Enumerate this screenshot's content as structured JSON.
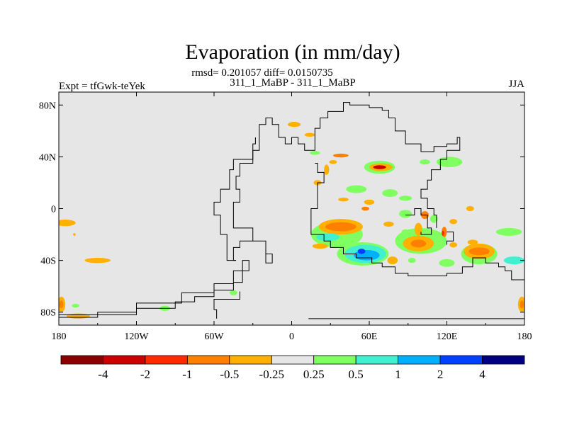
{
  "chart_data": {
    "type": "heatmap",
    "title": "Evaporation (in mm/day)",
    "stats_line": "rmsd= 0.201057 diff= 0.0150735",
    "comparison": "311_1_MaBP - 311_1_MaBP",
    "experiment": "Expt = tfGwk-teYek",
    "season": "JJA",
    "x_range": [
      -180,
      180
    ],
    "y_range": [
      -90,
      90
    ],
    "x_ticks": [
      {
        "value": -180,
        "label": "180"
      },
      {
        "value": -120,
        "label": "120W"
      },
      {
        "value": -60,
        "label": "60W"
      },
      {
        "value": 0,
        "label": "0"
      },
      {
        "value": 60,
        "label": "60E"
      },
      {
        "value": 120,
        "label": "120E"
      },
      {
        "value": 180,
        "label": "180"
      }
    ],
    "y_ticks": [
      {
        "value": 80,
        "label": "80N"
      },
      {
        "value": 40,
        "label": "40N"
      },
      {
        "value": 0,
        "label": "0"
      },
      {
        "value": -40,
        "label": "40S"
      },
      {
        "value": -80,
        "label": "80S"
      }
    ],
    "colorbar": {
      "colors": [
        "#8b0000",
        "#cc0000",
        "#ff2a00",
        "#ff7f00",
        "#ffb000",
        "#e6e6e6",
        "#80ff60",
        "#40f0d0",
        "#00b0ff",
        "#0040ff",
        "#000080"
      ],
      "labels": [
        "-4",
        "-2",
        "-1",
        "-0.5",
        "-0.25",
        "0.25",
        "0.5",
        "1",
        "2",
        "4"
      ]
    },
    "background_color": "#e6e6e6",
    "features": [
      {
        "lon": -175,
        "lat": -11,
        "rx": 8,
        "ry": 2.5,
        "color": "#ffb000"
      },
      {
        "lon": -150,
        "lat": -40,
        "rx": 10,
        "ry": 2,
        "color": "#ffb000"
      },
      {
        "lon": -165,
        "lat": -83,
        "rx": 9,
        "ry": 2,
        "color": "#ffb000"
      },
      {
        "lon": -178,
        "lat": -74,
        "rx": 3,
        "ry": 6,
        "color": "#ffb000"
      },
      {
        "lon": -178,
        "lat": -74,
        "rx": 1.5,
        "ry": 3,
        "color": "#ff7f00"
      },
      {
        "lon": -167,
        "lat": -75,
        "rx": 3,
        "ry": 1.5,
        "color": "#80ff60"
      },
      {
        "lon": -98,
        "lat": -77,
        "rx": 4,
        "ry": 2,
        "color": "#80ff60"
      },
      {
        "lon": -45,
        "lat": -65,
        "rx": 3,
        "ry": 2,
        "color": "#80ff60"
      },
      {
        "lon": 2,
        "lat": 65,
        "rx": 5,
        "ry": 2,
        "color": "#ffb000"
      },
      {
        "lon": 14,
        "lat": 57,
        "rx": 4,
        "ry": 1.5,
        "color": "#ffb000"
      },
      {
        "lon": 18,
        "lat": 43,
        "rx": 4,
        "ry": 1.5,
        "color": "#80ff60"
      },
      {
        "lon": 38,
        "lat": 41,
        "rx": 6,
        "ry": 1.5,
        "color": "#ff7f00"
      },
      {
        "lon": 32,
        "lat": 36,
        "rx": 3,
        "ry": 1.5,
        "color": "#ffb000"
      },
      {
        "lon": 27,
        "lat": 30,
        "rx": 2,
        "ry": 4,
        "color": "#ffb000"
      },
      {
        "lon": 20,
        "lat": 20,
        "rx": 3,
        "ry": 2,
        "color": "#ffb000"
      },
      {
        "lon": 68,
        "lat": 32,
        "rx": 12,
        "ry": 5,
        "color": "#80ff60"
      },
      {
        "lon": 69,
        "lat": 32,
        "rx": 9,
        "ry": 3,
        "color": "#ffb000"
      },
      {
        "lon": 68,
        "lat": 32,
        "rx": 5,
        "ry": 1.5,
        "color": "#cc0000"
      },
      {
        "lon": 103,
        "lat": 36,
        "rx": 4,
        "ry": 2,
        "color": "#80ff60"
      },
      {
        "lon": 122,
        "lat": 36,
        "rx": 10,
        "ry": 4,
        "color": "#80ff60"
      },
      {
        "lon": 50,
        "lat": 15,
        "rx": 8,
        "ry": 3,
        "color": "#80ff60"
      },
      {
        "lon": 76,
        "lat": 12,
        "rx": 6,
        "ry": 3,
        "color": "#80ff60"
      },
      {
        "lon": 88,
        "lat": 8,
        "rx": 5,
        "ry": 2,
        "color": "#80ff60"
      },
      {
        "lon": 40,
        "lat": 7,
        "rx": 4,
        "ry": 1.5,
        "color": "#ffb000"
      },
      {
        "lon": 60,
        "lat": 5,
        "rx": 4,
        "ry": 2,
        "color": "#ffb000"
      },
      {
        "lon": 57,
        "lat": 0,
        "rx": 3,
        "ry": 1.5,
        "color": "#ff7f00"
      },
      {
        "lon": 88,
        "lat": -4,
        "rx": 5,
        "ry": 3,
        "color": "#80ff60"
      },
      {
        "lon": 75,
        "lat": -12,
        "rx": 4,
        "ry": 2,
        "color": "#ffb000"
      },
      {
        "lon": 35,
        "lat": -20,
        "rx": 20,
        "ry": 10,
        "color": "#80ff60"
      },
      {
        "lon": 38,
        "lat": -14,
        "rx": 17,
        "ry": 6,
        "color": "#ffb000"
      },
      {
        "lon": 38,
        "lat": -14,
        "rx": 12,
        "ry": 3.5,
        "color": "#ff7f00"
      },
      {
        "lon": 28,
        "lat": -22,
        "rx": 9,
        "ry": 3,
        "color": "#40f0d0"
      },
      {
        "lon": 22,
        "lat": -29,
        "rx": 6,
        "ry": 2,
        "color": "#ffb000"
      },
      {
        "lon": 55,
        "lat": -35,
        "rx": 20,
        "ry": 9,
        "color": "#80ff60"
      },
      {
        "lon": 57,
        "lat": -35,
        "rx": 16,
        "ry": 7,
        "color": "#40f0d0"
      },
      {
        "lon": 58,
        "lat": -36,
        "rx": 10,
        "ry": 4,
        "color": "#00b0ff"
      },
      {
        "lon": 54,
        "lat": -33,
        "rx": 3,
        "ry": 2,
        "color": "#0040ff"
      },
      {
        "lon": 78,
        "lat": -40,
        "rx": 4,
        "ry": 3,
        "color": "#ffb000"
      },
      {
        "lon": 93,
        "lat": -40,
        "rx": 3,
        "ry": 2,
        "color": "#80ff60"
      },
      {
        "lon": 100,
        "lat": -25,
        "rx": 20,
        "ry": 10,
        "color": "#80ff60"
      },
      {
        "lon": 98,
        "lat": -27,
        "rx": 12,
        "ry": 6,
        "color": "#ffb000"
      },
      {
        "lon": 98,
        "lat": -27,
        "rx": 6,
        "ry": 3,
        "color": "#ff7f00"
      },
      {
        "lon": 98,
        "lat": -16,
        "rx": 3,
        "ry": 5,
        "color": "#ffb000"
      },
      {
        "lon": 103,
        "lat": -5,
        "rx": 3,
        "ry": 3,
        "color": "#ff7f00"
      },
      {
        "lon": 118,
        "lat": -18,
        "rx": 2,
        "ry": 4,
        "color": "#ff7f00"
      },
      {
        "lon": 117,
        "lat": -19,
        "rx": 1,
        "ry": 2,
        "color": "#ff2a00"
      },
      {
        "lon": 110,
        "lat": -8,
        "rx": 3,
        "ry": 3,
        "color": "#80ff60"
      },
      {
        "lon": 125,
        "lat": -28,
        "rx": 3,
        "ry": 2,
        "color": "#ffb000"
      },
      {
        "lon": 88,
        "lat": -18,
        "rx": 3,
        "ry": 2,
        "color": "#80ff60"
      },
      {
        "lon": 120,
        "lat": -42,
        "rx": 6,
        "ry": 3,
        "color": "#80ff60"
      },
      {
        "lon": 125,
        "lat": -10,
        "rx": 3,
        "ry": 2,
        "color": "#ffb000"
      },
      {
        "lon": 145,
        "lat": -35,
        "rx": 14,
        "ry": 8,
        "color": "#80ff60"
      },
      {
        "lon": 145,
        "lat": -33,
        "rx": 12,
        "ry": 6,
        "color": "#ffb000"
      },
      {
        "lon": 145,
        "lat": -33,
        "rx": 8,
        "ry": 3,
        "color": "#ff7f00"
      },
      {
        "lon": 140,
        "lat": -26,
        "rx": 4,
        "ry": 2,
        "color": "#ffb000"
      },
      {
        "lon": 168,
        "lat": -18,
        "rx": 10,
        "ry": 3,
        "color": "#80ff60"
      },
      {
        "lon": 172,
        "lat": -40,
        "rx": 8,
        "ry": 3,
        "color": "#40f0d0"
      },
      {
        "lon": 178,
        "lat": -74,
        "rx": 3,
        "ry": 6,
        "color": "#ffb000"
      },
      {
        "lon": 178,
        "lat": -74,
        "rx": 1.5,
        "ry": 3,
        "color": "#ff7f00"
      },
      {
        "lon": 138,
        "lat": 0,
        "rx": 3,
        "ry": 2,
        "color": "#ffb000"
      },
      {
        "lon": -168,
        "lat": -20,
        "rx": 1,
        "ry": 1,
        "color": "#ffb000"
      }
    ],
    "land_outlines": [
      [
        [
          13,
          -85
        ],
        [
          180,
          -85
        ]
      ],
      [
        [
          -180,
          -82
        ],
        [
          -150,
          -82
        ],
        [
          -120,
          -77
        ],
        [
          -90,
          -72
        ],
        [
          -75,
          -68
        ],
        [
          -60,
          -63
        ],
        [
          -45,
          -57
        ],
        [
          -38,
          -47
        ],
        [
          -38,
          -40
        ],
        [
          -33,
          -40
        ],
        [
          -33,
          -48
        ],
        [
          -45,
          -58
        ],
        [
          -60,
          -65
        ],
        [
          -85,
          -73
        ],
        [
          -120,
          -80
        ],
        [
          -150,
          -84
        ],
        [
          -180,
          -84
        ]
      ],
      [
        [
          -43,
          -40
        ],
        [
          -45,
          -30
        ],
        [
          -40,
          -25
        ],
        [
          -30,
          -25
        ],
        [
          -20,
          -42
        ],
        [
          -15,
          -42
        ],
        [
          -15,
          -35
        ],
        [
          -20,
          -25
        ],
        [
          -30,
          -15
        ],
        [
          -45,
          -5
        ],
        [
          -45,
          5
        ],
        [
          -40,
          15
        ],
        [
          -43,
          25
        ],
        [
          -40,
          35
        ],
        [
          -30,
          45
        ],
        [
          -25,
          55
        ],
        [
          -25,
          65
        ],
        [
          -20,
          70
        ],
        [
          -15,
          65
        ],
        [
          -10,
          55
        ],
        [
          -5,
          50
        ],
        [
          0,
          55
        ],
        [
          5,
          50
        ],
        [
          10,
          45
        ],
        [
          15,
          45
        ]
      ],
      [
        [
          -43,
          -40
        ],
        [
          -50,
          -35
        ],
        [
          -50,
          -20
        ],
        [
          -55,
          -5
        ],
        [
          -60,
          5
        ],
        [
          -55,
          15
        ],
        [
          -48,
          30
        ],
        [
          -45,
          38
        ],
        [
          -30,
          50
        ],
        [
          -28,
          55
        ]
      ],
      [
        [
          -40,
          -64
        ],
        [
          -40,
          -70
        ],
        [
          -55,
          -70
        ],
        [
          -60,
          -78
        ],
        [
          -58,
          -85
        ]
      ],
      [
        [
          15,
          45
        ],
        [
          18,
          55
        ],
        [
          18,
          62
        ],
        [
          22,
          70
        ],
        [
          28,
          75
        ],
        [
          40,
          82
        ],
        [
          45,
          80
        ],
        [
          60,
          78
        ],
        [
          70,
          76
        ],
        [
          75,
          70
        ],
        [
          80,
          60
        ],
        [
          88,
          50
        ],
        [
          100,
          44
        ],
        [
          110,
          48
        ],
        [
          120,
          50
        ],
        [
          128,
          55
        ],
        [
          130,
          45
        ],
        [
          120,
          38
        ],
        [
          115,
          30
        ],
        [
          108,
          22
        ],
        [
          105,
          15
        ],
        [
          100,
          8
        ],
        [
          105,
          0
        ],
        [
          110,
          -5
        ],
        [
          112,
          -15
        ]
      ],
      [
        [
          18,
          35
        ],
        [
          20,
          28
        ],
        [
          25,
          20
        ],
        [
          20,
          10
        ],
        [
          20,
          0
        ],
        [
          15,
          -5
        ],
        [
          15,
          -20
        ],
        [
          25,
          -25
        ],
        [
          30,
          -30
        ],
        [
          40,
          -35
        ],
        [
          50,
          -38
        ],
        [
          62,
          -42
        ],
        [
          70,
          -45
        ],
        [
          80,
          -50
        ],
        [
          90,
          -52
        ],
        [
          100,
          -52
        ],
        [
          120,
          -50
        ],
        [
          132,
          -45
        ],
        [
          140,
          -38
        ],
        [
          150,
          -42
        ],
        [
          160,
          -45
        ],
        [
          165,
          -48
        ],
        [
          170,
          -55
        ],
        [
          180,
          -62
        ]
      ],
      [
        [
          88,
          -5
        ],
        [
          95,
          0
        ],
        [
          100,
          -5
        ],
        [
          105,
          -15
        ],
        [
          108,
          -20
        ],
        [
          100,
          -18
        ]
      ],
      [
        [
          120,
          -18
        ],
        [
          125,
          -20
        ],
        [
          125,
          -25
        ],
        [
          120,
          -28
        ]
      ]
    ]
  }
}
